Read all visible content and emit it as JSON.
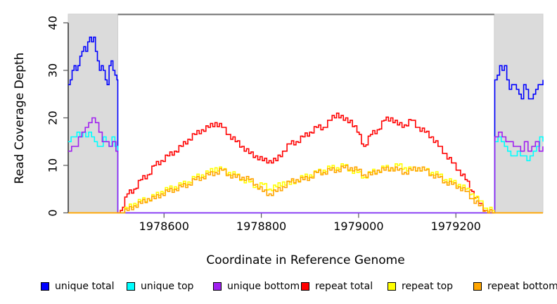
{
  "figure": {
    "background": "#ffffff"
  },
  "chart_data": {
    "type": "line",
    "step": true,
    "title": "",
    "xlabel": "Coordinate in Reference Genome",
    "ylabel": "Read Coverage Depth",
    "xlim": [
      1978403,
      1979379
    ],
    "ylim": [
      0,
      40
    ],
    "x_ticks": [
      1978600,
      1978800,
      1979000,
      1979200
    ],
    "y_ticks": [
      0,
      10,
      20,
      30,
      40
    ],
    "grid": false,
    "legend_position": "bottom",
    "shaded_regions": [
      {
        "x1": 1978403,
        "x2": 1978505,
        "fill": "#dbdbdb",
        "stroke": "#cfcfcf"
      },
      {
        "x1": 1979279,
        "x2": 1979379,
        "fill": "#dbdbdb",
        "stroke": "#cfcfcf"
      }
    ],
    "top_marker": {
      "x1": 1978505,
      "x2": 1979279,
      "y": 41.8,
      "color": "#6e6e6e"
    },
    "series": [
      {
        "name": "unique total",
        "color": "#0000FF",
        "segments": [
          {
            "x0": 1978403,
            "dx": 4,
            "v": [
              27,
              28,
              30,
              31,
              30,
              31,
              33,
              34,
              35,
              34,
              36,
              37,
              36,
              37,
              34,
              32,
              30,
              31,
              30,
              28,
              27,
              31,
              32,
              30,
              29,
              28
            ]
          },
          {
            "pts": [
              [
                1978505,
                0
              ],
              [
                1979279,
                0
              ]
            ]
          },
          {
            "x0": 1979280,
            "dx": 4.95,
            "v": [
              28,
              29,
              31,
              30,
              31,
              28,
              26,
              27,
              27,
              26,
              25,
              24,
              27,
              26,
              24,
              24,
              25,
              26,
              27,
              27,
              28
            ]
          }
        ]
      },
      {
        "name": "unique top",
        "color": "#00FFFF",
        "segments": [
          {
            "x0": 1978403,
            "dx": 6,
            "v": [
              15,
              16,
              16,
              17,
              16,
              17,
              16,
              17,
              16,
              15,
              14,
              14,
              16,
              15,
              14,
              16,
              14
            ]
          },
          {
            "pts": [
              [
                1978505,
                0
              ],
              [
                1979279,
                0
              ]
            ]
          },
          {
            "x0": 1979280,
            "dx": 6.6,
            "v": [
              15,
              16,
              15,
              14,
              13,
              12,
              12,
              13,
              12,
              12,
              11,
              12,
              13,
              14,
              16,
              15
            ]
          }
        ]
      },
      {
        "name": "unique bottom",
        "color": "#A020F0",
        "segments": [
          {
            "x0": 1978403,
            "dx": 7,
            "v": [
              13,
              14,
              14,
              16,
              17,
              18,
              19,
              20,
              19,
              17,
              15,
              15,
              14,
              15,
              13
            ]
          },
          {
            "pts": [
              [
                1978505,
                0
              ],
              [
                1979279,
                0
              ]
            ]
          },
          {
            "x0": 1979280,
            "dx": 7.6,
            "v": [
              16,
              17,
              16,
              15,
              15,
              14,
              14,
              13,
              15,
              13,
              14,
              15,
              13,
              14
            ]
          }
        ]
      },
      {
        "name": "repeat total",
        "color": "#FF0000",
        "segments": [
          {
            "pts": [
              [
                1978403,
                0
              ],
              [
                1978506,
                0
              ]
            ]
          },
          {
            "x0": 1978510,
            "dx": 13.9,
            "v": [
              0.5,
              4,
              5,
              7,
              8,
              10,
              11,
              12,
              13,
              14,
              15.5,
              16.5,
              17.5,
              18,
              19,
              18,
              16.5,
              15,
              14,
              12.5,
              12,
              11,
              11,
              11,
              13,
              14.5,
              15,
              16,
              17,
              18,
              18,
              19.5,
              21,
              19.5,
              19.5,
              17,
              14,
              16.5,
              17.5,
              19.5,
              20,
              18.5,
              18.5,
              19.5,
              18,
              17,
              16,
              14,
              12.5,
              10.5,
              9,
              7,
              4.5,
              2,
              0.5,
              0
            ]
          },
          {
            "pts": [
              [
                1979279,
                0
              ],
              [
                1979379,
                0
              ]
            ]
          }
        ]
      },
      {
        "name": "repeat top",
        "color": "#FFFF00",
        "segments": [
          {
            "pts": [
              [
                1978403,
                0
              ],
              [
                1978506,
                0
              ]
            ]
          },
          {
            "x0": 1978510,
            "dx": 13.9,
            "v": [
              0,
              1,
              2,
              2.5,
              3,
              3.5,
              4.5,
              5,
              5.5,
              6,
              6.5,
              7.5,
              8,
              8.5,
              9.5,
              9,
              8.5,
              8,
              7,
              6.5,
              5.5,
              6,
              5,
              5.5,
              6.5,
              6,
              7,
              7.5,
              8,
              8.5,
              9,
              9.5,
              9.5,
              10,
              9,
              8.5,
              7.5,
              8.5,
              9,
              9.5,
              9.5,
              10,
              9.5,
              9,
              9.5,
              9,
              8.5,
              8,
              7,
              6.5,
              6,
              5,
              4,
              2.5,
              1,
              0.5
            ]
          },
          {
            "pts": [
              [
                1979279,
                0
              ],
              [
                1979379,
                0
              ]
            ]
          }
        ]
      },
      {
        "name": "repeat bottom",
        "color": "#FFA500",
        "segments": [
          {
            "pts": [
              [
                1978403,
                0
              ],
              [
                1978506,
                0
              ]
            ]
          },
          {
            "x0": 1978510,
            "dx": 13.9,
            "v": [
              0,
              0.5,
              1.5,
              2,
              3,
              3,
              4,
              4.5,
              5,
              5.5,
              6,
              7,
              7.5,
              8,
              8.5,
              9,
              8,
              7.5,
              7.5,
              7,
              6,
              4.5,
              4,
              4.5,
              5.5,
              6.5,
              7,
              7,
              7.5,
              8.5,
              8.5,
              9,
              9,
              9.5,
              9.5,
              9,
              8,
              8,
              9,
              9,
              9.5,
              9,
              8.5,
              9,
              9.5,
              9,
              8,
              7.5,
              6.5,
              6,
              5.5,
              4.5,
              3,
              1.5,
              0.5,
              0
            ]
          },
          {
            "pts": [
              [
                1979279,
                0
              ],
              [
                1979379,
                0
              ]
            ]
          }
        ]
      }
    ]
  },
  "legend": {
    "items": [
      {
        "label": "unique total",
        "color": "#0000FF"
      },
      {
        "label": "unique top",
        "color": "#00FFFF"
      },
      {
        "label": "unique bottom",
        "color": "#A020F0"
      },
      {
        "label": "repeat total",
        "color": "#FF0000"
      },
      {
        "label": "repeat top",
        "color": "#FFFF00"
      },
      {
        "label": "repeat bottom",
        "color": "#FFA500"
      }
    ]
  }
}
